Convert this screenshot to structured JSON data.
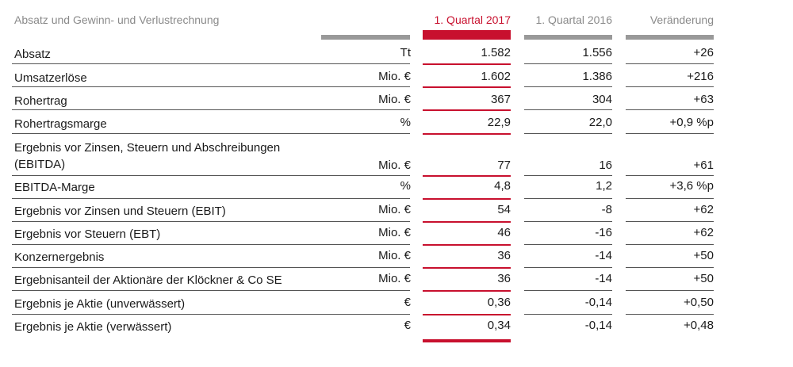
{
  "header": {
    "title": "Absatz und Gewinn- und Verlustrechnung",
    "col_q2017": "1. Quartal 2017",
    "col_q2016": "1. Quartal 2016",
    "col_change": "Veränderung",
    "accent_color": "#c8102e"
  },
  "rows": [
    {
      "label": "Absatz",
      "unit": "Tt",
      "q2017": "1.582",
      "q2016": "1.556",
      "change": "+26"
    },
    {
      "label": "Umsatzerlöse",
      "unit": "Mio. €",
      "q2017": "1.602",
      "q2016": "1.386",
      "change": "+216"
    },
    {
      "label": "Rohertrag",
      "unit": "Mio. €",
      "q2017": "367",
      "q2016": "304",
      "change": "+63"
    },
    {
      "label": "Rohertragsmarge",
      "unit": "%",
      "q2017": "22,9",
      "q2016": "22,0",
      "change": "+0,9 %p"
    },
    {
      "label": "Ergebnis vor Zinsen, Steuern und Abschreibungen",
      "label2": "(EBITDA)",
      "unit": "Mio. €",
      "q2017": "77",
      "q2016": "16",
      "change": "+61"
    },
    {
      "label": "EBITDA-Marge",
      "unit": "%",
      "q2017": "4,8",
      "q2016": "1,2",
      "change": "+3,6 %p"
    },
    {
      "label": "Ergebnis vor Zinsen und Steuern (EBIT)",
      "unit": "Mio. €",
      "q2017": "54",
      "q2016": "-8",
      "change": "+62"
    },
    {
      "label": "Ergebnis vor Steuern (EBT)",
      "unit": "Mio. €",
      "q2017": "46",
      "q2016": "-16",
      "change": "+62"
    },
    {
      "label": "Konzernergebnis",
      "unit": "Mio. €",
      "q2017": "36",
      "q2016": "-14",
      "change": "+50"
    },
    {
      "label": "Ergebnisanteil der Aktionäre der Klöckner & Co SE",
      "unit": "Mio. €",
      "q2017": "36",
      "q2016": "-14",
      "change": "+50"
    },
    {
      "label": "Ergebnis je Aktie (unverwässert)",
      "unit": "€",
      "q2017": "0,36",
      "q2016": "-0,14",
      "change": "+0,50"
    },
    {
      "label": "Ergebnis je Aktie (verwässert)",
      "unit": "€",
      "q2017": "0,34",
      "q2016": "-0,14",
      "change": "+0,48"
    }
  ]
}
